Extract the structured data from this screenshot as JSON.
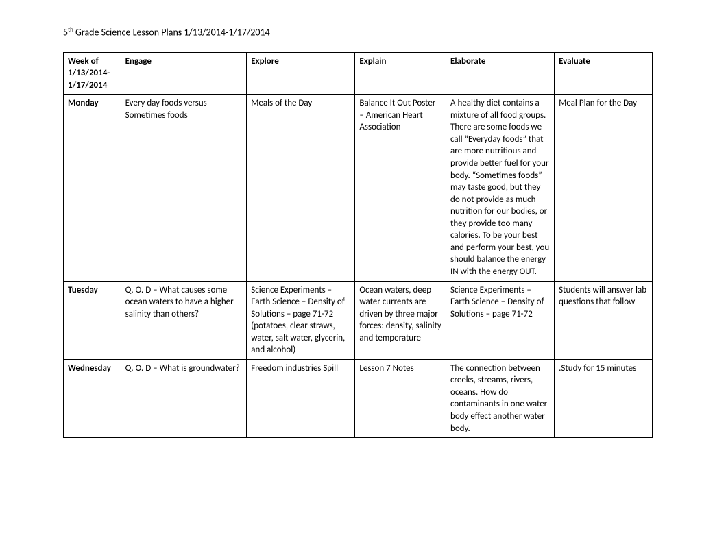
{
  "title_prefix": "5",
  "title_sup": "th",
  "title_rest": " Grade Science Lesson Plans 1/13/2014-1/17/2014",
  "columns": [
    "Week of 1/13/2014-1/17/2014",
    "Engage",
    "Explore",
    "Explain",
    "Elaborate",
    "Evaluate"
  ],
  "rows": [
    {
      "day": "Monday",
      "engage": "Every day foods versus Sometimes foods",
      "explore": "Meals of the Day",
      "explain": "Balance It Out Poster – American Heart Association",
      "elaborate": "A healthy diet contains a mixture of all food groups. There are some foods we call “Everyday foods” that are more nutritious and provide better fuel for your body. “Sometimes foods” may taste good, but they do not provide as much nutrition for our bodies, or they provide too many calories. To be your best and perform your best, you should balance the energy IN with the energy OUT.",
      "evaluate": "Meal Plan for the Day"
    },
    {
      "day": "Tuesday",
      "engage": "Q. O. D – What causes some ocean waters to have a higher salinity than others?",
      "explore": "Science Experiments – Earth Science – Density of Solutions – page 71-72 (potatoes, clear straws, water, salt water, glycerin, and alcohol)",
      "explain": "Ocean waters, deep water currents are driven by three major forces: density, salinity and temperature",
      "elaborate": "Science Experiments – Earth Science – Density of Solutions – page 71-72",
      "evaluate": "Students will answer lab questions that follow"
    },
    {
      "day": "Wednesday",
      "engage": "Q. O. D – What is groundwater?",
      "explore": "Freedom industries Spill",
      "explain": "Lesson 7 Notes",
      "elaborate": "The connection between creeks, streams, rivers, oceans.  How do contaminants in one water body effect another water body.",
      "evaluate": ".Study for 15 minutes"
    }
  ],
  "table_style": {
    "border_color": "#000000",
    "background": "#ffffff",
    "font_family": "Calibri",
    "title_fontsize": 14,
    "cell_fontsize": 13,
    "line_height": 1.35
  }
}
